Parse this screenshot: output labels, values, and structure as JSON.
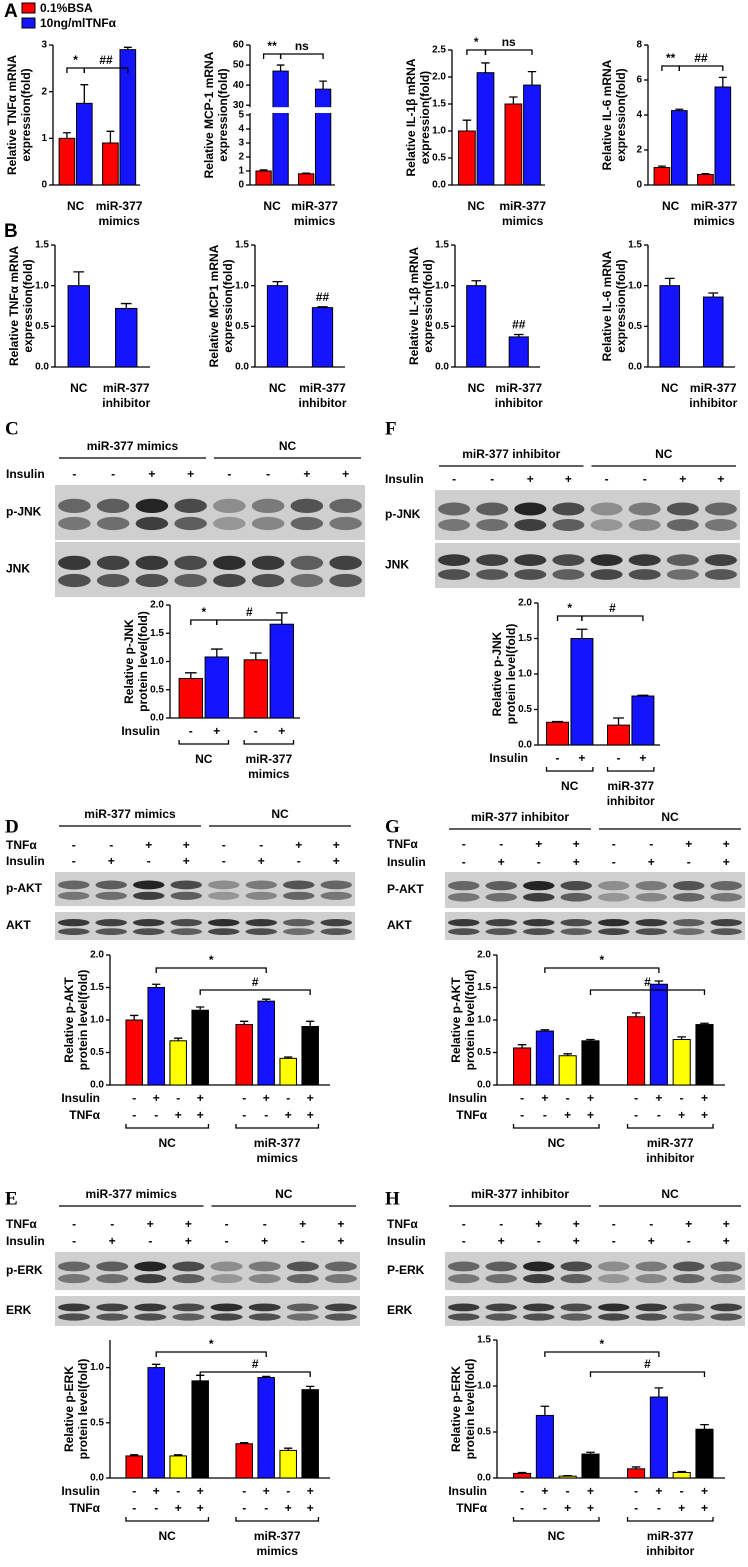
{
  "chart_data": [
    {
      "type": "bar",
      "panel": "A",
      "ylabel": [
        "Relative TNFα  mRNA",
        "expression(fold)"
      ],
      "categories": [
        "NC",
        "miR-377 mimics"
      ],
      "series": [
        {
          "name": "0.1%BSA",
          "color": "#ff0000",
          "values": [
            1.0,
            0.9
          ],
          "errors": [
            0.12,
            0.25
          ]
        },
        {
          "name": "10ng/mlTNFα",
          "color": "#1414ff",
          "values": [
            1.75,
            2.9
          ],
          "errors": [
            0.4,
            0.05
          ]
        }
      ],
      "ylim": [
        0,
        3
      ],
      "yticks": [
        0,
        1,
        2,
        3
      ],
      "annotations": [
        "*",
        "##"
      ]
    },
    {
      "type": "bar",
      "ylabel": [
        "Relative MCP-1 mRNA",
        "expression(fold)"
      ],
      "categories": [
        "NC",
        "miR-377 mimics"
      ],
      "series": [
        {
          "color": "#ff0000",
          "values": [
            1.0,
            0.8
          ],
          "errors": [
            0.08,
            0.05
          ]
        },
        {
          "color": "#1414ff",
          "values": [
            47,
            38
          ],
          "errors": [
            3,
            4
          ]
        }
      ],
      "ylim": [
        0,
        60
      ],
      "ybreak": [
        5,
        30
      ],
      "yticks": [
        0,
        1,
        2,
        3,
        4,
        5,
        30,
        40,
        50,
        60
      ],
      "annotations": [
        "**",
        "ns"
      ]
    },
    {
      "type": "bar",
      "ylabel": [
        "Relative IL-1β  mRNA",
        "expression(fold)"
      ],
      "categories": [
        "NC",
        "miR-377 mimics"
      ],
      "series": [
        {
          "color": "#ff0000",
          "values": [
            1.0,
            1.5
          ],
          "errors": [
            0.2,
            0.13
          ]
        },
        {
          "color": "#1414ff",
          "values": [
            2.08,
            1.85
          ],
          "errors": [
            0.18,
            0.25
          ]
        }
      ],
      "ylim": [
        0,
        2.5
      ],
      "yticks": [
        {
          "value": 0,
          "label": "0.0"
        },
        0.5,
        {
          "value": 1,
          "label": "1.0"
        },
        1.5,
        {
          "value": 2,
          "label": "2.0"
        },
        2.5
      ],
      "annotations": [
        "*",
        "ns"
      ]
    },
    {
      "type": "bar",
      "ylabel": [
        "Relative IL-6 mRNA",
        "expression(fold)"
      ],
      "categories": [
        "NC",
        "miR-377 mimics"
      ],
      "series": [
        {
          "color": "#ff0000",
          "values": [
            1.0,
            0.6
          ],
          "errors": [
            0.08,
            0.05
          ]
        },
        {
          "color": "#1414ff",
          "values": [
            4.25,
            5.6
          ],
          "errors": [
            0.08,
            0.55
          ]
        }
      ],
      "ylim": [
        0,
        8
      ],
      "yticks": [
        0,
        2,
        4,
        6,
        8
      ],
      "annotations": [
        "**",
        "##"
      ]
    },
    {
      "type": "bar",
      "panel": "B",
      "ylabel": [
        "Relative TNFα  mRNA",
        "expression(fold)"
      ],
      "categories": [
        "NC",
        "miR-377 inhibitor"
      ],
      "series": [
        {
          "color": "#1414ff",
          "values": [
            1.0,
            0.72
          ],
          "errors": [
            0.17,
            0.06
          ]
        }
      ],
      "ylim": [
        0,
        1.5
      ],
      "yticks": [
        {
          "value": 0,
          "label": "0.0"
        },
        0.5,
        {
          "value": 1,
          "label": "1.0"
        },
        1.5
      ],
      "annotations": []
    },
    {
      "type": "bar",
      "ylabel": [
        "Relative MCP1 mRNA",
        "expression(fold)"
      ],
      "categories": [
        "NC",
        "miR-377 inhibitor"
      ],
      "series": [
        {
          "color": "#1414ff",
          "values": [
            1.0,
            0.73
          ],
          "errors": [
            0.05,
            0.01
          ]
        }
      ],
      "ylim": [
        0,
        1.5
      ],
      "yticks": [
        {
          "value": 0,
          "label": "0.0"
        },
        0.5,
        {
          "value": 1,
          "label": "1.0"
        },
        1.5
      ],
      "annotations": [
        "##"
      ]
    },
    {
      "type": "bar",
      "ylabel": [
        "Relative IL-1β  mRNA",
        "expression(fold)"
      ],
      "categories": [
        "NC",
        "miR-377 inhibitor"
      ],
      "series": [
        {
          "color": "#1414ff",
          "values": [
            1.0,
            0.37
          ],
          "errors": [
            0.06,
            0.03
          ]
        }
      ],
      "ylim": [
        0,
        1.5
      ],
      "yticks": [
        {
          "value": 0,
          "label": "0.0"
        },
        0.5,
        {
          "value": 1,
          "label": "1.0"
        },
        1.5
      ],
      "annotations": [
        "##"
      ]
    },
    {
      "type": "bar",
      "ylabel": [
        "Relative IL-6 mRNA",
        "expression(fold)"
      ],
      "categories": [
        "NC",
        "miR-377 inhibitor"
      ],
      "series": [
        {
          "color": "#1414ff",
          "values": [
            1.0,
            0.86
          ],
          "errors": [
            0.09,
            0.05
          ]
        }
      ],
      "ylim": [
        0,
        1.5
      ],
      "yticks": [
        {
          "value": 0,
          "label": "0.0"
        },
        0.5,
        {
          "value": 1,
          "label": "1.0"
        },
        1.5
      ],
      "annotations": []
    },
    {
      "type": "bar",
      "panel": "C",
      "ylabel": [
        "Relative p-JNK",
        "protein level(fold)"
      ],
      "categories": [
        "NC",
        "miR-377 mimics"
      ],
      "series": [
        {
          "color": "#ff0000",
          "values": [
            0.7,
            1.03
          ],
          "errors": [
            0.1,
            0.12
          ]
        },
        {
          "color": "#1414ff",
          "values": [
            1.08,
            1.66
          ],
          "errors": [
            0.14,
            0.2
          ]
        }
      ],
      "ylim": [
        0,
        2
      ],
      "yticks": [
        {
          "value": 0,
          "label": "0.0"
        },
        0.5,
        {
          "value": 1,
          "label": "1.0"
        },
        1.5,
        {
          "value": 2,
          "label": "2.0"
        }
      ],
      "annotations": [
        "*",
        "#"
      ],
      "sign_rows": [
        {
          "label": "Insulin",
          "signs": [
            "-",
            "+",
            "-",
            "+"
          ]
        }
      ],
      "blot": {
        "groups": [
          "miR-377 mimics",
          "NC"
        ],
        "rows": [
          {
            "label": "Insulin",
            "signs": [
              "-",
              "-",
              "+",
              "+",
              "-",
              "-",
              "+",
              "+"
            ]
          }
        ],
        "bands": [
          "p-JNK",
          "JNK"
        ]
      }
    },
    {
      "type": "bar",
      "panel": "F",
      "ylabel": [
        "Relative p-JNK",
        "protein level(fold)"
      ],
      "categories": [
        "NC",
        "miR-377 inhibitor"
      ],
      "series": [
        {
          "color": "#ff0000",
          "values": [
            0.32,
            0.28
          ],
          "errors": [
            0.01,
            0.1
          ]
        },
        {
          "color": "#1414ff",
          "values": [
            1.5,
            0.69
          ],
          "errors": [
            0.13,
            0.01
          ]
        }
      ],
      "ylim": [
        0,
        2
      ],
      "yticks": [
        {
          "value": 0,
          "label": "0.0"
        },
        0.5,
        {
          "value": 1,
          "label": "1.0"
        },
        1.5,
        {
          "value": 2,
          "label": "2.0"
        }
      ],
      "annotations": [
        "*",
        "#"
      ],
      "sign_rows": [
        {
          "label": "Insulin",
          "signs": [
            "-",
            "+",
            "-",
            "+"
          ]
        }
      ],
      "blot": {
        "groups": [
          "miR-377 inhibitor",
          "NC"
        ],
        "rows": [
          {
            "label": "Insulin",
            "signs": [
              "-",
              "-",
              "+",
              "+",
              "-",
              "-",
              "+",
              "+"
            ]
          }
        ],
        "bands": [
          "p-JNK",
          "JNK"
        ]
      }
    },
    {
      "type": "bar",
      "panel": "D",
      "ylabel": [
        "Relative p-AKT",
        "protein level(fold)"
      ],
      "categories": [
        "NC",
        "miR-377 mimics"
      ],
      "series": [
        {
          "color": "#ff0000",
          "values": [
            1.0,
            0.93
          ],
          "errors": [
            0.07,
            0.05
          ]
        },
        {
          "color": "#1414ff",
          "values": [
            1.5,
            1.29
          ],
          "errors": [
            0.05,
            0.03
          ]
        },
        {
          "color": "#ffff00",
          "values": [
            0.68,
            0.41
          ],
          "errors": [
            0.04,
            0.02
          ]
        },
        {
          "color": "#000000",
          "values": [
            1.15,
            0.9
          ],
          "errors": [
            0.05,
            0.08
          ]
        }
      ],
      "ylim": [
        0,
        2
      ],
      "yticks": [
        {
          "value": 0,
          "label": "0.0"
        },
        0.5,
        {
          "value": 1,
          "label": "1.0"
        },
        1.5,
        {
          "value": 2,
          "label": "2.0"
        }
      ],
      "annotations": [
        "*",
        "#"
      ],
      "sign_rows": [
        {
          "label": "Insulin",
          "signs": [
            "-",
            "+",
            "-",
            "+",
            "-",
            "+",
            "-",
            "+"
          ]
        },
        {
          "label": "TNFα",
          "signs": [
            "-",
            "-",
            "+",
            "+",
            "-",
            "-",
            "+",
            "+"
          ]
        }
      ],
      "blot": {
        "groups": [
          "miR-377 mimics",
          "NC"
        ],
        "rows": [
          {
            "label": "TNFα",
            "signs": [
              "-",
              "-",
              "+",
              "+",
              "-",
              "-",
              "+",
              "+"
            ]
          },
          {
            "label": "Insulin",
            "signs": [
              "-",
              "+",
              "-",
              "+",
              "-",
              "+",
              "-",
              "+"
            ]
          }
        ],
        "bands": [
          "p-AKT",
          "AKT"
        ]
      }
    },
    {
      "type": "bar",
      "panel": "G",
      "ylabel": [
        "Relative p-AKT",
        "protein level(fold)"
      ],
      "categories": [
        "NC",
        "miR-377 inhibitor"
      ],
      "series": [
        {
          "color": "#ff0000",
          "values": [
            0.57,
            1.05
          ],
          "errors": [
            0.05,
            0.06
          ]
        },
        {
          "color": "#1414ff",
          "values": [
            0.83,
            1.55
          ],
          "errors": [
            0.02,
            0.05
          ]
        },
        {
          "color": "#ffff00",
          "values": [
            0.45,
            0.7
          ],
          "errors": [
            0.03,
            0.04
          ]
        },
        {
          "color": "#000000",
          "values": [
            0.68,
            0.93
          ],
          "errors": [
            0.02,
            0.02
          ]
        }
      ],
      "ylim": [
        0,
        2
      ],
      "yticks": [
        {
          "value": 0,
          "label": "0.0"
        },
        0.5,
        {
          "value": 1,
          "label": "1.0"
        },
        1.5,
        {
          "value": 2,
          "label": "2.0"
        }
      ],
      "annotations": [
        "*",
        "#"
      ],
      "sign_rows": [
        {
          "label": "Insulin",
          "signs": [
            "-",
            "+",
            "-",
            "+",
            "-",
            "+",
            "-",
            "+"
          ]
        },
        {
          "label": "TNFα",
          "signs": [
            "-",
            "-",
            "+",
            "+",
            "-",
            "-",
            "+",
            "+"
          ]
        }
      ],
      "blot": {
        "groups": [
          "miR-377 inhibitor",
          "NC"
        ],
        "rows": [
          {
            "label": "TNFα",
            "signs": [
              "-",
              "-",
              "+",
              "+",
              "-",
              "-",
              "+",
              "+"
            ]
          },
          {
            "label": "Insulin",
            "signs": [
              "-",
              "+",
              "-",
              "+",
              "-",
              "+",
              "-",
              "+"
            ]
          }
        ],
        "bands": [
          "P-AKT",
          "AKT"
        ]
      }
    },
    {
      "type": "bar",
      "panel": "E",
      "ylabel": [
        "Relative p-ERK",
        "protein level(fold)"
      ],
      "categories": [
        "NC",
        "miR-377 mimics"
      ],
      "series": [
        {
          "color": "#ff0000",
          "values": [
            0.2,
            0.31
          ],
          "errors": [
            0.01,
            0.01
          ]
        },
        {
          "color": "#1414ff",
          "values": [
            1.0,
            0.91
          ],
          "errors": [
            0.03,
            0.01
          ]
        },
        {
          "color": "#ffff00",
          "values": [
            0.2,
            0.25
          ],
          "errors": [
            0.01,
            0.02
          ]
        },
        {
          "color": "#000000",
          "values": [
            0.88,
            0.8
          ],
          "errors": [
            0.05,
            0.03
          ]
        }
      ],
      "ylim": [
        0,
        1.25
      ],
      "yticks": [
        {
          "value": 0,
          "label": "0.0"
        },
        0.5,
        {
          "value": 1,
          "label": "1.0"
        }
      ],
      "annotations": [
        "*",
        "#"
      ],
      "sign_rows": [
        {
          "label": "Insulin",
          "signs": [
            "-",
            "+",
            "-",
            "+",
            "-",
            "+",
            "-",
            "+"
          ]
        },
        {
          "label": "TNFα",
          "signs": [
            "-",
            "-",
            "+",
            "+",
            "-",
            "-",
            "+",
            "+"
          ]
        }
      ],
      "blot": {
        "groups": [
          "miR-377 mimics",
          "NC"
        ],
        "rows": [
          {
            "label": "TNFα",
            "signs": [
              "-",
              "-",
              "+",
              "+",
              "-",
              "-",
              "+",
              "+"
            ]
          },
          {
            "label": "Insulin",
            "signs": [
              "-",
              "+",
              "-",
              "+",
              "-",
              "+",
              "-",
              "+"
            ]
          }
        ],
        "bands": [
          "p-ERK",
          "ERK"
        ]
      }
    },
    {
      "type": "bar",
      "panel": "H",
      "ylabel": [
        "Relative p-ERK",
        "protein level(fold)"
      ],
      "categories": [
        "NC",
        "miR-377 inhibitor"
      ],
      "series": [
        {
          "color": "#ff0000",
          "values": [
            0.05,
            0.1
          ],
          "errors": [
            0.01,
            0.02
          ]
        },
        {
          "color": "#1414ff",
          "values": [
            0.68,
            0.88
          ],
          "errors": [
            0.1,
            0.1
          ]
        },
        {
          "color": "#ffff00",
          "values": [
            0.02,
            0.06
          ],
          "errors": [
            0.005,
            0.01
          ]
        },
        {
          "color": "#000000",
          "values": [
            0.26,
            0.53
          ],
          "errors": [
            0.02,
            0.05
          ]
        }
      ],
      "ylim": [
        0,
        1.5
      ],
      "yticks": [
        {
          "value": 0,
          "label": "0.0"
        },
        0.5,
        {
          "value": 1,
          "label": "1.0"
        },
        1.5
      ],
      "annotations": [
        "*",
        "#"
      ],
      "sign_rows": [
        {
          "label": "Insulin",
          "signs": [
            "-",
            "+",
            "-",
            "+",
            "-",
            "+",
            "-",
            "+"
          ]
        },
        {
          "label": "TNFα",
          "signs": [
            "-",
            "-",
            "+",
            "+",
            "-",
            "-",
            "+",
            "+"
          ]
        }
      ],
      "blot": {
        "groups": [
          "miR-377 inhibitor",
          "NC"
        ],
        "rows": [
          {
            "label": "TNFα",
            "signs": [
              "-",
              "-",
              "+",
              "+",
              "-",
              "-",
              "+",
              "+"
            ]
          },
          {
            "label": "Insulin",
            "signs": [
              "-",
              "+",
              "-",
              "+",
              "-",
              "+",
              "-",
              "+"
            ]
          }
        ],
        "bands": [
          "P-ERK",
          "ERK"
        ]
      }
    }
  ]
}
